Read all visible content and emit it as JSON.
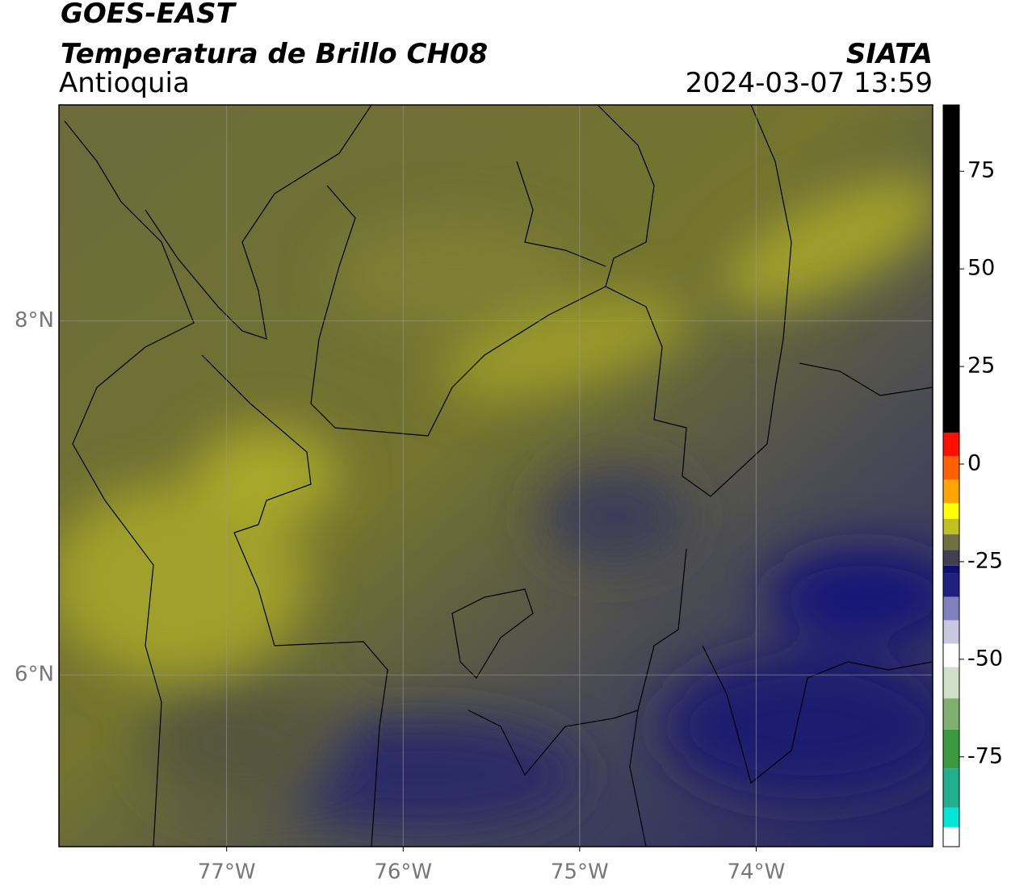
{
  "header": {
    "title": "GOES-EAST",
    "subtitle": "Temperatura de Brillo CH08",
    "region": "Antioquia",
    "source": "SIATA",
    "datetime": "2024-03-07 13:59"
  },
  "map": {
    "xlim": [
      -77.95,
      -73.0
    ],
    "ylim": [
      5.03,
      9.22
    ],
    "xticks": [
      {
        "value": -77,
        "label": "77°W"
      },
      {
        "value": -76,
        "label": "76°W"
      },
      {
        "value": -75,
        "label": "75°W"
      },
      {
        "value": -74,
        "label": "74°W"
      }
    ],
    "yticks": [
      {
        "value": 6,
        "label": "6°N"
      },
      {
        "value": 8,
        "label": "8°N"
      }
    ],
    "grid": true
  },
  "colorbar": {
    "lim": [
      -98,
      92
    ],
    "ticks": [
      75,
      50,
      25,
      0,
      -25,
      -50,
      -75
    ],
    "segments": [
      {
        "from": -98,
        "to": -93,
        "color": "#ffffff"
      },
      {
        "from": -93,
        "to": -88,
        "color": "#00e5d5"
      },
      {
        "from": -88,
        "to": -78,
        "color": "#20b090"
      },
      {
        "from": -78,
        "to": -68,
        "color": "#3a9a40"
      },
      {
        "from": -68,
        "to": -60,
        "color": "#80b070"
      },
      {
        "from": -60,
        "to": -52,
        "color": "#d0e0c8"
      },
      {
        "from": -52,
        "to": -46,
        "color": "#ffffff"
      },
      {
        "from": -46,
        "to": -40,
        "color": "#c8c8e0"
      },
      {
        "from": -40,
        "to": -34,
        "color": "#8080c0"
      },
      {
        "from": -34,
        "to": -28,
        "color": "#202080"
      },
      {
        "from": -28,
        "to": -26,
        "color": "#101070"
      },
      {
        "from": -26,
        "to": -22,
        "color": "#404050"
      },
      {
        "from": -22,
        "to": -18,
        "color": "#707040"
      },
      {
        "from": -18,
        "to": -14,
        "color": "#c0c020"
      },
      {
        "from": -14,
        "to": -10,
        "color": "#ffff00"
      },
      {
        "from": -10,
        "to": -4,
        "color": "#ffa500"
      },
      {
        "from": -4,
        "to": 2,
        "color": "#ff6000"
      },
      {
        "from": 2,
        "to": 8,
        "color": "#ff1000"
      },
      {
        "from": 8,
        "to": 92,
        "color": "#000000"
      }
    ]
  }
}
